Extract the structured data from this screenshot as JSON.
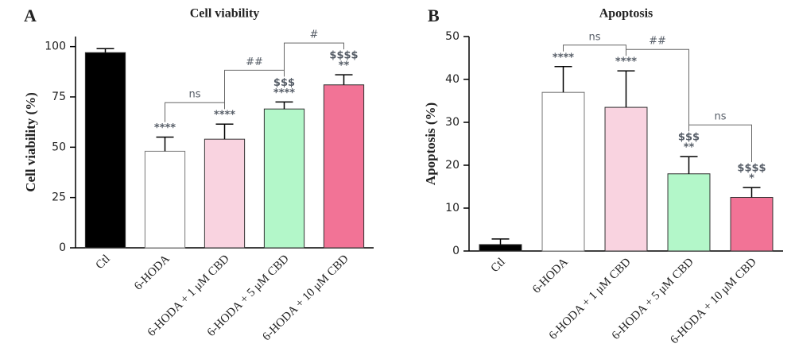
{
  "chart_data": [
    {
      "type": "bar",
      "panel": "A",
      "title": "Cell viability",
      "y_label": "Cell viability (%)",
      "categories": [
        "Ctl",
        "6-HODA",
        "6-HODA + 1 μM CBD",
        "6-HODA + 5 μM CBD",
        "6-HODA + 10 μM CBD"
      ],
      "values": [
        97,
        48,
        54,
        69,
        81
      ],
      "errors": [
        2,
        7,
        7.5,
        3.5,
        5
      ],
      "colors": [
        "#000000",
        "#ffffff",
        "#f9d3e0",
        "#b3f7c9",
        "#f27396"
      ],
      "annotations": [
        null,
        [
          "****"
        ],
        [
          "****"
        ],
        [
          "$$$",
          "****"
        ],
        [
          "$$$$",
          "**"
        ]
      ],
      "brackets": [
        {
          "from": 1,
          "to": 2,
          "label": "ns"
        },
        {
          "from": 2,
          "to": 3,
          "label": "##"
        },
        {
          "from": 3,
          "to": 4,
          "label": "#"
        }
      ],
      "ylim": [
        0,
        105
      ],
      "yticks": [
        0,
        25,
        50,
        75,
        100
      ]
    },
    {
      "type": "bar",
      "panel": "B",
      "title": "Apoptosis",
      "y_label": "Apoptosis (%)",
      "categories": [
        "Ctl",
        "6-HODA",
        "6-HODA + 1 μM CBD",
        "6-HODA + 5 μM CBD",
        "6-HODA + 10 μM CBD"
      ],
      "values": [
        1.5,
        37,
        33.5,
        18,
        12.5
      ],
      "errors": [
        1.3,
        6,
        8.5,
        4,
        2.3
      ],
      "colors": [
        "#000000",
        "#ffffff",
        "#f9d3e0",
        "#b3f7c9",
        "#f27396"
      ],
      "annotations": [
        null,
        [
          "****"
        ],
        [
          "****"
        ],
        [
          "$$$",
          "**"
        ],
        [
          "$$$$",
          "*"
        ]
      ],
      "brackets": [
        {
          "from": 1,
          "to": 2,
          "label": "ns"
        },
        {
          "from": 2,
          "to": 3,
          "label": "##"
        },
        {
          "from": 3,
          "to": 4,
          "label": "ns"
        }
      ],
      "ylim": [
        0,
        50
      ],
      "yticks": [
        0,
        10,
        20,
        30,
        40,
        50
      ]
    }
  ]
}
